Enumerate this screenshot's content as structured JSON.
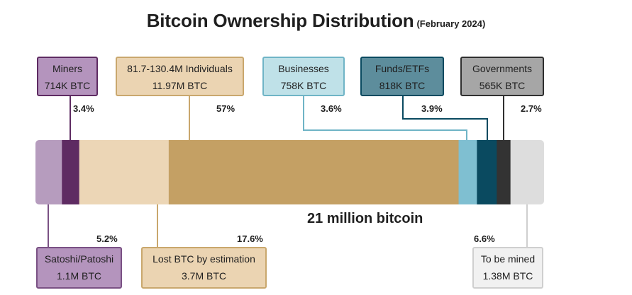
{
  "title": "Bitcoin Ownership Distribution",
  "subtitle": "(February 2024)",
  "colors": {
    "satoshi": "#b69cbe",
    "miners": "#5e2b62",
    "lost": "#ecd6b6",
    "individuals": "#c4a064",
    "businesses": "#7fbfd1",
    "funds": "#0a4a60",
    "governments": "#333333",
    "tobemined": "#dddddd"
  },
  "chart_data": {
    "type": "bar",
    "orientation": "horizontal-stacked",
    "total_label": "21 million bitcoin",
    "segments": [
      {
        "key": "satoshi",
        "name": "Satoshi/Patoshi",
        "amount": "1.1M BTC",
        "btc_millions": 1.1,
        "percent_label": "5.2%",
        "percent": 5.2
      },
      {
        "key": "miners",
        "name": "Miners",
        "amount": "714K BTC",
        "btc_millions": 0.714,
        "percent_label": "3.4%",
        "percent": 3.4
      },
      {
        "key": "lost",
        "name": "Lost BTC by estimation",
        "amount": "3.7M BTC",
        "btc_millions": 3.7,
        "percent_label": "17.6%",
        "percent": 17.6
      },
      {
        "key": "individuals",
        "name": "81.7-130.4M Individuals",
        "amount": "11.97M BTC",
        "btc_millions": 11.97,
        "percent_label": "57%",
        "percent": 57
      },
      {
        "key": "businesses",
        "name": "Businesses",
        "amount": "758K BTC",
        "btc_millions": 0.758,
        "percent_label": "3.6%",
        "percent": 3.6
      },
      {
        "key": "funds",
        "name": "Funds/ETFs",
        "amount": "818K BTC",
        "btc_millions": 0.818,
        "percent_label": "3.9%",
        "percent": 3.9
      },
      {
        "key": "governments",
        "name": "Governments",
        "amount": "565K BTC",
        "btc_millions": 0.565,
        "percent_label": "2.7%",
        "percent": 2.7
      },
      {
        "key": "tobemined",
        "name": "To be mined",
        "amount": "1.38M BTC",
        "btc_millions": 1.38,
        "percent_label": "6.6%",
        "percent": 6.6
      }
    ]
  }
}
